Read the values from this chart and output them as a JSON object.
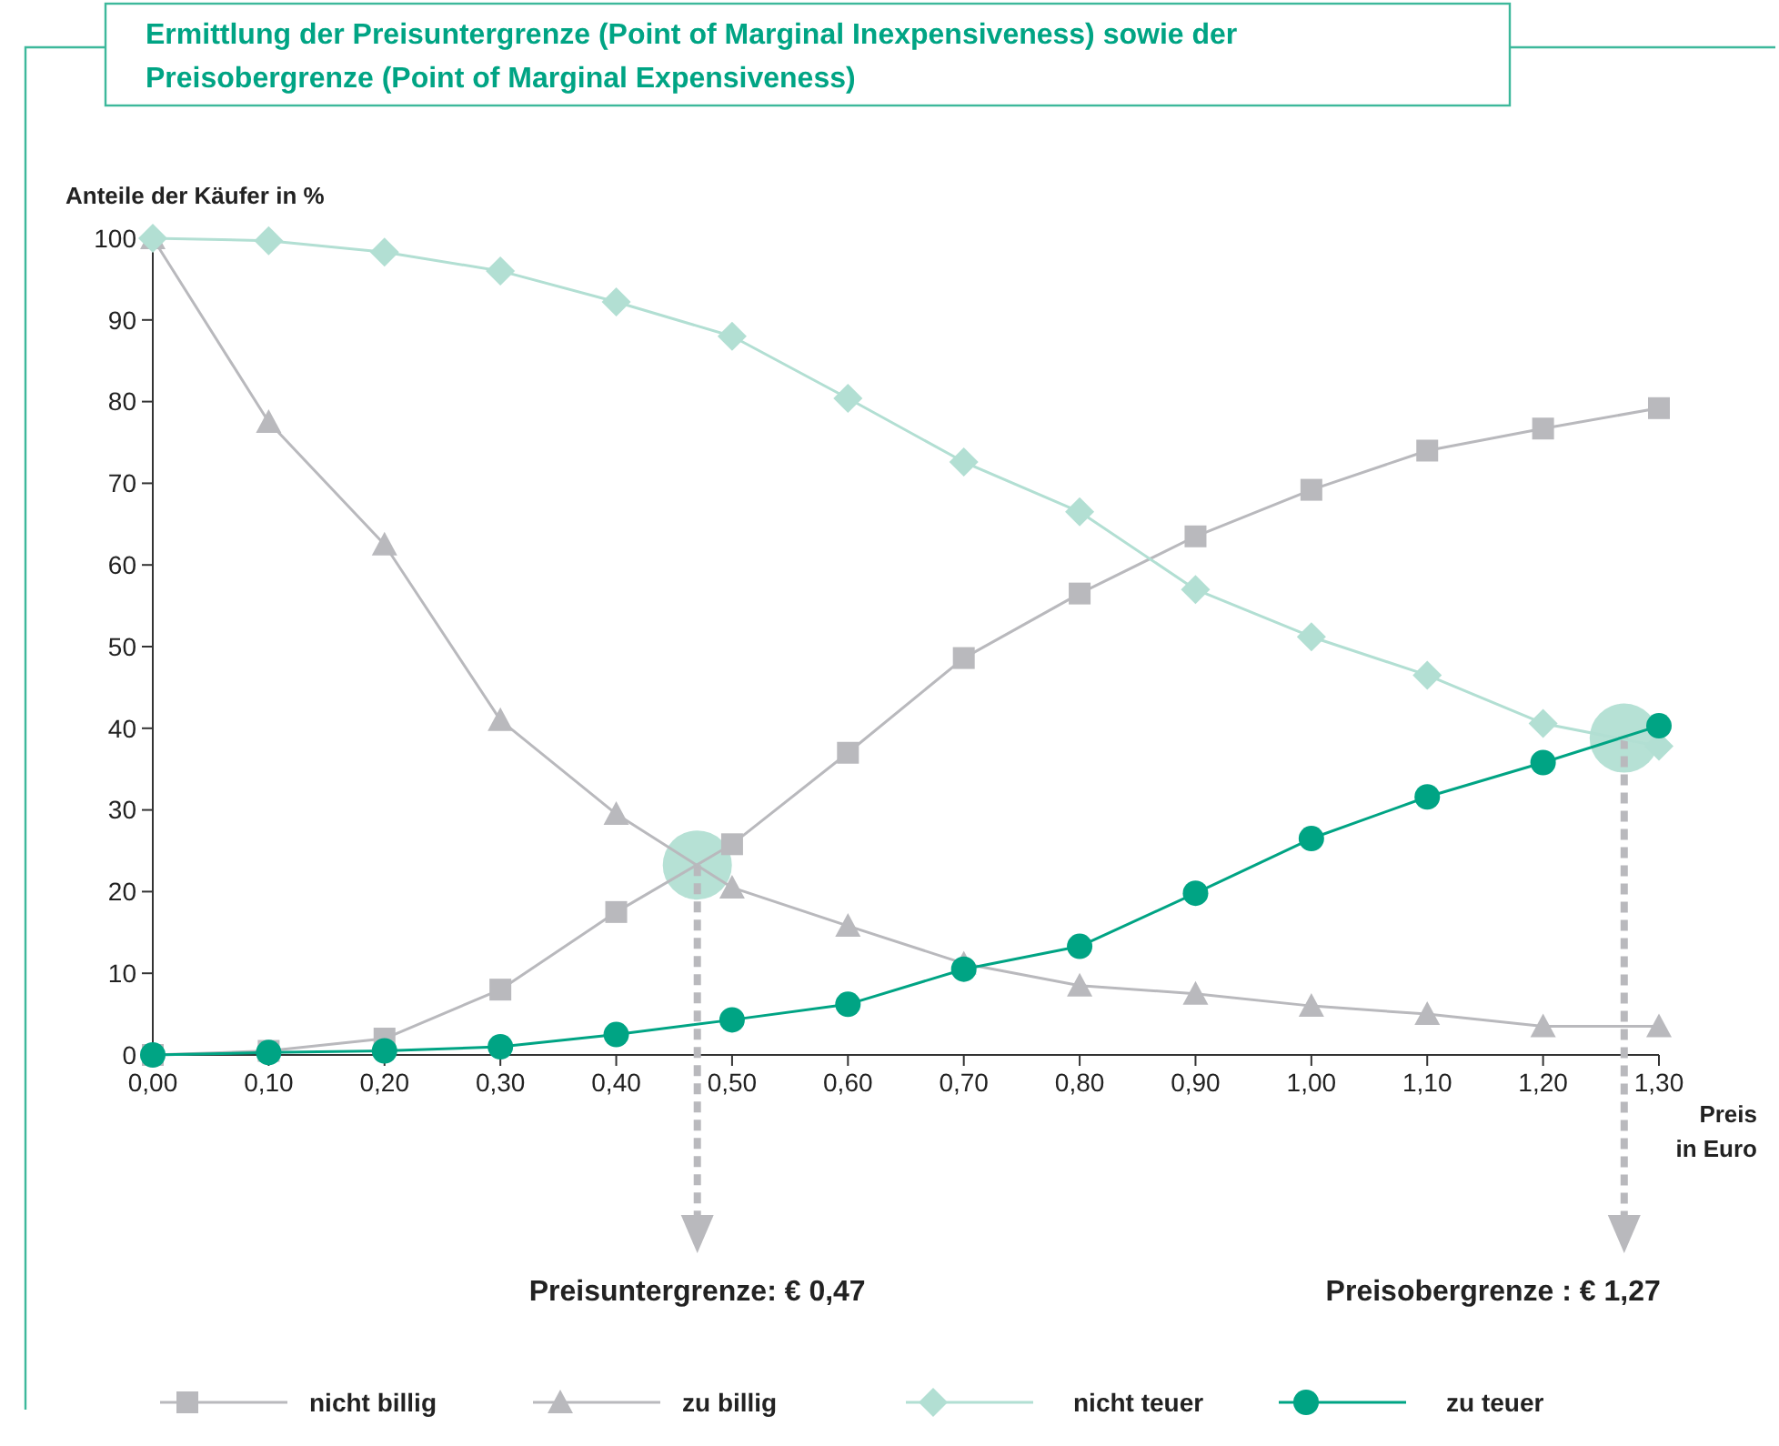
{
  "chart_data": {
    "type": "line",
    "title": "Ermittlung der Preisuntergrenze (Point of Marginal Inexpensiveness) sowie der\nPreisobergrenze (Point of Marginal Expensiveness)",
    "xlabel": "Preis\nin Euro",
    "ylabel": "Anteile der Käufer in %",
    "x": [
      0,
      0.1,
      0.2,
      0.3,
      0.4,
      0.5,
      0.6,
      0.7,
      0.8,
      0.9,
      1.0,
      1.1,
      1.2,
      1.3
    ],
    "series": [
      {
        "name": "nicht billig",
        "color": "#b9b9bd",
        "marker": "square",
        "values": [
          0,
          0.5,
          2,
          8,
          17.5,
          25.8,
          37,
          48.6,
          56.5,
          63.5,
          69.2,
          74,
          76.7,
          79.2
        ]
      },
      {
        "name": "zu billig",
        "color": "#b9b9bd",
        "marker": "triangle",
        "values": [
          100,
          77.5,
          62.5,
          41,
          29.5,
          20.5,
          15.8,
          11.2,
          8.5,
          7.5,
          6,
          5,
          3.5,
          3.5
        ]
      },
      {
        "name": "nicht teuer",
        "color": "#b2dfd3",
        "marker": "diamond",
        "values": [
          100,
          99.7,
          98.3,
          96,
          92.2,
          88,
          80.4,
          72.6,
          66.5,
          57,
          51.2,
          46.5,
          40.6,
          37.8
        ]
      },
      {
        "name": "zu teuer",
        "color": "#00a484",
        "marker": "circle",
        "values": [
          0,
          0.3,
          0.5,
          1,
          2.5,
          4.3,
          6.2,
          10.5,
          13.3,
          19.8,
          26.5,
          31.6,
          35.8,
          40.3
        ]
      }
    ],
    "xlim": [
      0,
      1.3
    ],
    "xticks": [
      {
        "value": 0,
        "label": "0,00"
      },
      {
        "value": 0.1,
        "label": "0,10"
      },
      {
        "value": 0.2,
        "label": "0,20"
      },
      {
        "value": 0.3,
        "label": "0,30"
      },
      {
        "value": 0.4,
        "label": "0,40"
      },
      {
        "value": 0.5,
        "label": "0,50"
      },
      {
        "value": 0.6,
        "label": "0,60"
      },
      {
        "value": 0.7,
        "label": "0,70"
      },
      {
        "value": 0.8,
        "label": "0,80"
      },
      {
        "value": 0.9,
        "label": "0,90"
      },
      {
        "value": 1.0,
        "label": "1,00"
      },
      {
        "value": 1.1,
        "label": "1,10"
      },
      {
        "value": 1.2,
        "label": "1,20"
      },
      {
        "value": 1.3,
        "label": "1,30"
      }
    ],
    "ylim": [
      0,
      100
    ],
    "yticks": [
      0,
      10,
      20,
      30,
      40,
      50,
      60,
      70,
      80,
      90,
      100
    ],
    "ref_lines": [
      {
        "axis": "x",
        "value": 0.47,
        "label": "Preisuntergrenze: € 0,47",
        "color": "#b9b9bd",
        "line_style": "dotted"
      },
      {
        "axis": "x",
        "value": 1.27,
        "label": "Preisobergrenze : € 1,27",
        "color": "#b9b9bd",
        "line_style": "dotted"
      }
    ],
    "grid": false,
    "legend": "bottom",
    "line_style": "solid"
  }
}
